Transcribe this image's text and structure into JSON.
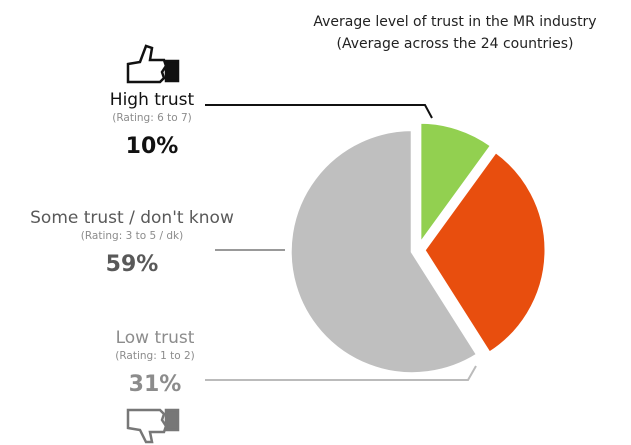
{
  "chart_data": {
    "type": "pie",
    "title": "Average level of trust in the MR industry",
    "subtitle": "(Average across the 24 countries)",
    "categories": [
      "High trust",
      "Low trust",
      "Some trust / don't know"
    ],
    "category_notes": [
      "(Rating: 6 to 7)",
      "(Rating: 1 to 2)",
      "(Rating: 3 to 5 / dk)"
    ],
    "values": [
      10,
      31,
      59
    ],
    "value_labels": [
      "10%",
      "31%",
      "59%"
    ],
    "colors": [
      "#92d050",
      "#e84e0e",
      "#bfbfbf"
    ]
  }
}
